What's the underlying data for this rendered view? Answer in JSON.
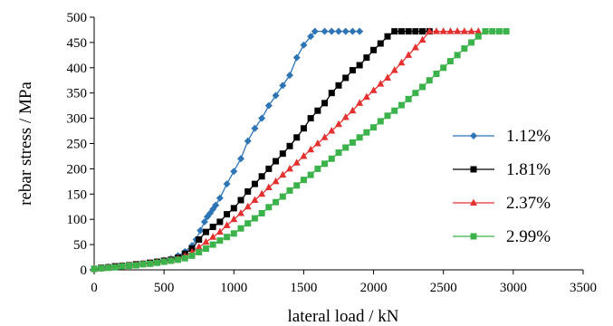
{
  "chart_data": {
    "type": "line",
    "title": "",
    "xlabel": "lateral load / kN",
    "ylabel": "rebar stress / MPa",
    "xlim": [
      0,
      3500
    ],
    "ylim": [
      0,
      500
    ],
    "xticks": [
      0,
      500,
      1000,
      1500,
      2000,
      2500,
      3000,
      3500
    ],
    "yticks": [
      0,
      50,
      100,
      150,
      200,
      250,
      300,
      350,
      400,
      450,
      500
    ],
    "grid": false,
    "legend_position": "right",
    "series": [
      {
        "name": "1.12%",
        "color": "#2E75B6",
        "marker": "diamond",
        "points": [
          [
            0,
            2
          ],
          [
            50,
            4
          ],
          [
            100,
            6
          ],
          [
            150,
            7
          ],
          [
            200,
            8
          ],
          [
            250,
            9
          ],
          [
            300,
            10
          ],
          [
            350,
            12
          ],
          [
            400,
            14
          ],
          [
            450,
            16
          ],
          [
            500,
            19
          ],
          [
            550,
            22
          ],
          [
            600,
            28
          ],
          [
            650,
            36
          ],
          [
            700,
            48
          ],
          [
            730,
            60
          ],
          [
            760,
            78
          ],
          [
            790,
            95
          ],
          [
            810,
            105
          ],
          [
            830,
            112
          ],
          [
            850,
            120
          ],
          [
            870,
            128
          ],
          [
            900,
            142
          ],
          [
            950,
            170
          ],
          [
            1000,
            195
          ],
          [
            1050,
            220
          ],
          [
            1100,
            255
          ],
          [
            1150,
            280
          ],
          [
            1200,
            300
          ],
          [
            1250,
            325
          ],
          [
            1300,
            345
          ],
          [
            1350,
            365
          ],
          [
            1400,
            385
          ],
          [
            1450,
            420
          ],
          [
            1500,
            445
          ],
          [
            1550,
            462
          ],
          [
            1580,
            472
          ],
          [
            1650,
            472
          ],
          [
            1700,
            472
          ],
          [
            1750,
            472
          ],
          [
            1800,
            472
          ],
          [
            1850,
            472
          ],
          [
            1900,
            472
          ]
        ]
      },
      {
        "name": "1.81%",
        "color": "#000000",
        "marker": "square",
        "points": [
          [
            0,
            2
          ],
          [
            50,
            4
          ],
          [
            100,
            5
          ],
          [
            150,
            7
          ],
          [
            200,
            8
          ],
          [
            250,
            9
          ],
          [
            300,
            11
          ],
          [
            350,
            12
          ],
          [
            400,
            14
          ],
          [
            450,
            16
          ],
          [
            500,
            18
          ],
          [
            550,
            20
          ],
          [
            600,
            24
          ],
          [
            650,
            32
          ],
          [
            700,
            42
          ],
          [
            750,
            60
          ],
          [
            800,
            75
          ],
          [
            850,
            85
          ],
          [
            900,
            95
          ],
          [
            950,
            110
          ],
          [
            1000,
            122
          ],
          [
            1050,
            138
          ],
          [
            1100,
            155
          ],
          [
            1150,
            170
          ],
          [
            1200,
            185
          ],
          [
            1250,
            200
          ],
          [
            1300,
            215
          ],
          [
            1350,
            230
          ],
          [
            1400,
            245
          ],
          [
            1450,
            262
          ],
          [
            1500,
            280
          ],
          [
            1550,
            300
          ],
          [
            1600,
            315
          ],
          [
            1650,
            330
          ],
          [
            1700,
            350
          ],
          [
            1750,
            365
          ],
          [
            1800,
            380
          ],
          [
            1850,
            395
          ],
          [
            1900,
            405
          ],
          [
            1950,
            420
          ],
          [
            2000,
            435
          ],
          [
            2050,
            448
          ],
          [
            2100,
            462
          ],
          [
            2150,
            472
          ],
          [
            2200,
            472
          ],
          [
            2250,
            472
          ],
          [
            2300,
            472
          ],
          [
            2350,
            472
          ],
          [
            2400,
            472
          ]
        ]
      },
      {
        "name": "2.37%",
        "color": "#E53030",
        "marker": "triangle",
        "points": [
          [
            0,
            2
          ],
          [
            50,
            3
          ],
          [
            100,
            5
          ],
          [
            150,
            6
          ],
          [
            200,
            8
          ],
          [
            250,
            9
          ],
          [
            300,
            10
          ],
          [
            350,
            12
          ],
          [
            400,
            13
          ],
          [
            450,
            15
          ],
          [
            500,
            17
          ],
          [
            550,
            19
          ],
          [
            600,
            22
          ],
          [
            650,
            27
          ],
          [
            700,
            35
          ],
          [
            750,
            45
          ],
          [
            800,
            55
          ],
          [
            850,
            65
          ],
          [
            900,
            75
          ],
          [
            950,
            88
          ],
          [
            1000,
            100
          ],
          [
            1050,
            112
          ],
          [
            1100,
            125
          ],
          [
            1150,
            138
          ],
          [
            1200,
            150
          ],
          [
            1250,
            163
          ],
          [
            1300,
            175
          ],
          [
            1350,
            188
          ],
          [
            1400,
            200
          ],
          [
            1450,
            212
          ],
          [
            1500,
            225
          ],
          [
            1550,
            238
          ],
          [
            1600,
            250
          ],
          [
            1650,
            262
          ],
          [
            1700,
            275
          ],
          [
            1750,
            288
          ],
          [
            1800,
            302
          ],
          [
            1850,
            315
          ],
          [
            1900,
            330
          ],
          [
            1950,
            342
          ],
          [
            2000,
            355
          ],
          [
            2050,
            368
          ],
          [
            2100,
            380
          ],
          [
            2150,
            395
          ],
          [
            2200,
            410
          ],
          [
            2250,
            425
          ],
          [
            2300,
            440
          ],
          [
            2350,
            455
          ],
          [
            2400,
            472
          ],
          [
            2450,
            472
          ],
          [
            2500,
            472
          ],
          [
            2550,
            472
          ],
          [
            2600,
            472
          ],
          [
            2650,
            472
          ],
          [
            2700,
            472
          ],
          [
            2750,
            472
          ]
        ]
      },
      {
        "name": "2.99%",
        "color": "#3CB34A",
        "marker": "square",
        "points": [
          [
            0,
            2
          ],
          [
            50,
            3
          ],
          [
            100,
            4
          ],
          [
            150,
            5
          ],
          [
            200,
            7
          ],
          [
            250,
            8
          ],
          [
            300,
            9
          ],
          [
            350,
            11
          ],
          [
            400,
            12
          ],
          [
            450,
            14
          ],
          [
            500,
            16
          ],
          [
            550,
            18
          ],
          [
            600,
            20
          ],
          [
            650,
            23
          ],
          [
            700,
            28
          ],
          [
            750,
            35
          ],
          [
            800,
            42
          ],
          [
            850,
            50
          ],
          [
            900,
            58
          ],
          [
            950,
            65
          ],
          [
            1000,
            72
          ],
          [
            1050,
            82
          ],
          [
            1100,
            92
          ],
          [
            1150,
            102
          ],
          [
            1200,
            112
          ],
          [
            1250,
            124
          ],
          [
            1300,
            134
          ],
          [
            1350,
            145
          ],
          [
            1400,
            157
          ],
          [
            1450,
            167
          ],
          [
            1500,
            178
          ],
          [
            1550,
            188
          ],
          [
            1600,
            200
          ],
          [
            1650,
            210
          ],
          [
            1700,
            220
          ],
          [
            1750,
            232
          ],
          [
            1800,
            242
          ],
          [
            1850,
            252
          ],
          [
            1900,
            262
          ],
          [
            1950,
            272
          ],
          [
            2000,
            282
          ],
          [
            2050,
            294
          ],
          [
            2100,
            305
          ],
          [
            2150,
            315
          ],
          [
            2200,
            326
          ],
          [
            2250,
            338
          ],
          [
            2300,
            350
          ],
          [
            2350,
            362
          ],
          [
            2400,
            375
          ],
          [
            2450,
            388
          ],
          [
            2500,
            400
          ],
          [
            2550,
            413
          ],
          [
            2600,
            425
          ],
          [
            2650,
            438
          ],
          [
            2700,
            450
          ],
          [
            2750,
            462
          ],
          [
            2800,
            472
          ],
          [
            2850,
            472
          ],
          [
            2900,
            472
          ],
          [
            2950,
            472
          ]
        ]
      }
    ]
  }
}
